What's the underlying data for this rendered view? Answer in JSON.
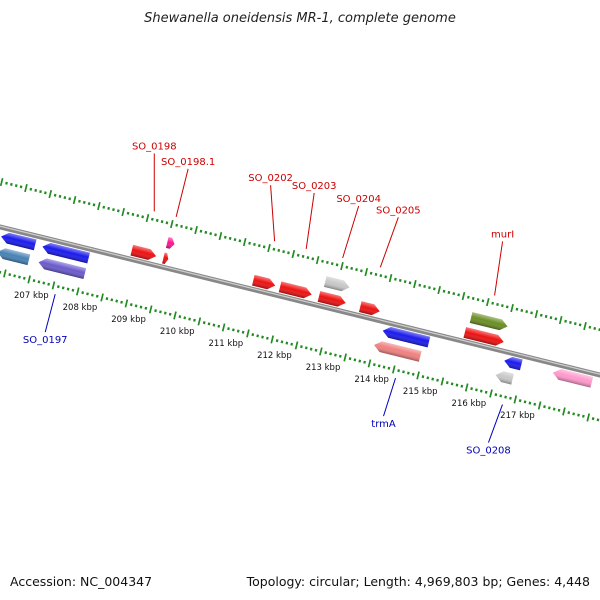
{
  "title": "Shewanella oneidensis MR-1, complete genome",
  "footer": {
    "accession": "Accession: NC_004347",
    "summary": "Topology: circular; Length: 4,969,803 bp; Genes: 4,448"
  },
  "colors": {
    "backbone": "#888888",
    "tick": "#228b22",
    "plus_label": "#cc0000",
    "minus_label": "#0000bb"
  },
  "ticks": [
    {
      "kbp": 207,
      "label": "207 kbp"
    },
    {
      "kbp": 208,
      "label": "208 kbp"
    },
    {
      "kbp": 209,
      "label": "209 kbp"
    },
    {
      "kbp": 210,
      "label": "210 kbp"
    },
    {
      "kbp": 211,
      "label": "211 kbp"
    },
    {
      "kbp": 212,
      "label": "212 kbp"
    },
    {
      "kbp": 213,
      "label": "213 kbp"
    },
    {
      "kbp": 214,
      "label": "214 kbp"
    },
    {
      "kbp": 215,
      "label": "215 kbp"
    },
    {
      "kbp": 216,
      "label": "216 kbp"
    },
    {
      "kbp": 217,
      "label": "217 kbp"
    }
  ],
  "features": [
    {
      "name": "",
      "strand": "minus",
      "start": 206.25,
      "end": 206.95,
      "lane": 1,
      "color": "#1a1aee"
    },
    {
      "name": "",
      "strand": "minus",
      "start": 206.25,
      "end": 206.9,
      "lane": 2,
      "color": "#4682b4"
    },
    {
      "name": "SO_0197",
      "strand": "minus",
      "start": 207.1,
      "end": 208.05,
      "lane": 1,
      "color": "#1a1aee"
    },
    {
      "name": "",
      "strand": "minus",
      "start": 207.1,
      "end": 208.05,
      "lane": 2,
      "color": "#6a5acd"
    },
    {
      "name": "SO_0198",
      "strand": "plus",
      "start": 208.85,
      "end": 209.35,
      "lane": 1,
      "color": "#ee1111"
    },
    {
      "name": "SO_0198.1",
      "strand": "plus",
      "start": 209.5,
      "end": 209.6,
      "lane": 1,
      "color": "#ee1111"
    },
    {
      "name": "",
      "strand": "plus",
      "start": 209.5,
      "end": 209.65,
      "lane": 2,
      "color": "#ff1493"
    },
    {
      "name": "SO_0202",
      "strand": "plus",
      "start": 211.35,
      "end": 211.8,
      "lane": 1,
      "color": "#ee1111"
    },
    {
      "name": "SO_0203",
      "strand": "plus",
      "start": 211.9,
      "end": 212.55,
      "lane": 1,
      "color": "#ee1111"
    },
    {
      "name": "SO_0204",
      "strand": "plus",
      "start": 212.7,
      "end": 213.25,
      "lane": 1,
      "color": "#ee1111"
    },
    {
      "name": "",
      "strand": "plus",
      "start": 212.75,
      "end": 213.25,
      "lane": 2,
      "color": "#c8c8c8"
    },
    {
      "name": "SO_0205",
      "strand": "plus",
      "start": 213.55,
      "end": 213.95,
      "lane": 1,
      "color": "#ee1111"
    },
    {
      "name": "trmA",
      "strand": "minus",
      "start": 214.1,
      "end": 215.05,
      "lane": 1,
      "color": "#1a1aee"
    },
    {
      "name": "",
      "strand": "minus",
      "start": 214.0,
      "end": 214.95,
      "lane": 2,
      "color": "#f08080"
    },
    {
      "name": "murI",
      "strand": "plus",
      "start": 215.7,
      "end": 216.5,
      "lane": 1,
      "color": "#ee1111"
    },
    {
      "name": "",
      "strand": "plus",
      "start": 215.75,
      "end": 216.5,
      "lane": 2,
      "color": "#6b8e23"
    },
    {
      "name": "SO_0208",
      "strand": "minus",
      "start": 216.6,
      "end": 216.95,
      "lane": 1,
      "color": "#1a1aee"
    },
    {
      "name": "",
      "strand": "minus",
      "start": 216.5,
      "end": 216.85,
      "lane": 2,
      "color": "#c8c8c8"
    },
    {
      "name": "",
      "strand": "minus",
      "start": 217.6,
      "end": 218.4,
      "lane": 1,
      "color": "#ff99cc"
    }
  ]
}
